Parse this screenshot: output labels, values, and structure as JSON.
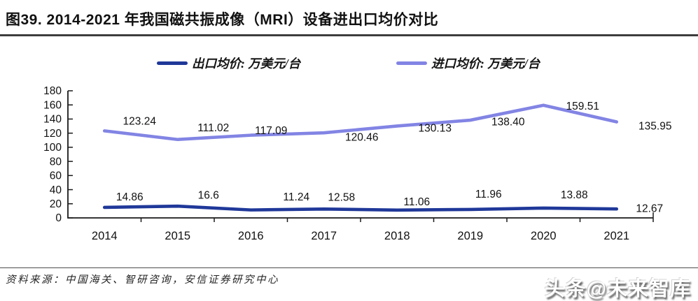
{
  "title": "图39. 2014-2021 年我国磁共振成像（MRI）设备进出口均价对比",
  "legend": {
    "items": [
      {
        "label": "出口均价: 万美元/台"
      },
      {
        "label": "进口均价: 万美元/台"
      }
    ]
  },
  "footer": {
    "source": "资料来源：中国海关、智研咨询，安信证券研究中心"
  },
  "watermark": "头条@未来智库",
  "colors": {
    "export_line": "#1F3899",
    "import_line": "#8284E4",
    "axis": "#1a1a1a",
    "label_text": "#111111",
    "title_rule": "#3d3d3d",
    "source_rule": "#4d4d4d"
  },
  "chart_data": {
    "type": "line",
    "categories": [
      "2014",
      "2015",
      "2016",
      "2017",
      "2018",
      "2019",
      "2020",
      "2021"
    ],
    "series": [
      {
        "name": "出口均价: 万美元/台",
        "color": "#1F3899",
        "values": [
          14.86,
          16.6,
          11.24,
          12.58,
          11.06,
          11.96,
          13.88,
          12.67
        ],
        "labels": [
          "14.86",
          "16.6",
          "11.24",
          "12.58",
          "11.06",
          "11.96",
          "13.88",
          "12.67"
        ]
      },
      {
        "name": "进口均价: 万美元/台",
        "color": "#8284E4",
        "values": [
          123.24,
          111.02,
          117.09,
          120.46,
          130.13,
          138.4,
          159.51,
          135.95
        ],
        "labels": [
          "123.24",
          "111.02",
          "117.09",
          "120.46",
          "130.13",
          "138.40",
          "159.51",
          "135.95"
        ]
      }
    ],
    "title": "2014-2021 年我国磁共振成像（MRI）设备进出口均价对比",
    "xlabel": "",
    "ylabel": "",
    "ylim": [
      0,
      180
    ],
    "ytick_step": 20,
    "grid": false,
    "legend_position": "top",
    "data_labels": true
  }
}
